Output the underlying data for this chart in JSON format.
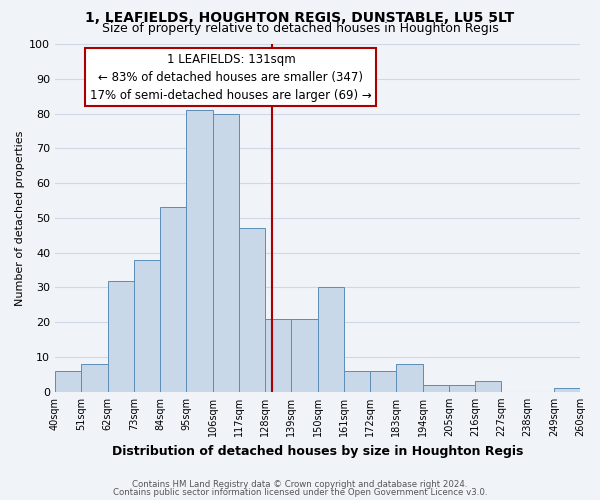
{
  "title": "1, LEAFIELDS, HOUGHTON REGIS, DUNSTABLE, LU5 5LT",
  "subtitle": "Size of property relative to detached houses in Houghton Regis",
  "xlabel": "Distribution of detached houses by size in Houghton Regis",
  "ylabel": "Number of detached properties",
  "bin_edges": [
    40,
    51,
    62,
    73,
    84,
    95,
    106,
    117,
    128,
    139,
    150,
    161,
    172,
    183,
    194,
    205,
    216,
    227,
    238,
    249,
    260
  ],
  "bar_heights": [
    6,
    8,
    32,
    38,
    53,
    81,
    80,
    47,
    21,
    21,
    30,
    6,
    6,
    8,
    2,
    2,
    3,
    0,
    0,
    1
  ],
  "bar_color": "#c8d8e8",
  "bar_edgecolor": "#5b8db8",
  "property_line_x": 131,
  "property_line_color": "#aa0000",
  "annotation_line1": "1 LEAFIELDS: 131sqm",
  "annotation_line2": "← 83% of detached houses are smaller (347)",
  "annotation_line3": "17% of semi-detached houses are larger (69) →",
  "annotation_box_edgecolor": "#aa0000",
  "annotation_box_facecolor": "#ffffff",
  "ylim": [
    0,
    100
  ],
  "yticks": [
    0,
    10,
    20,
    30,
    40,
    50,
    60,
    70,
    80,
    90,
    100
  ],
  "grid_color": "#d0d8e8",
  "background_color": "#f0f4f8",
  "footnote1": "Contains HM Land Registry data © Crown copyright and database right 2024.",
  "footnote2": "Contains public sector information licensed under the Open Government Licence v3.0.",
  "title_fontsize": 10,
  "subtitle_fontsize": 9,
  "xlabel_fontsize": 9,
  "ylabel_fontsize": 8,
  "tick_labels": [
    "40sqm",
    "51sqm",
    "62sqm",
    "73sqm",
    "84sqm",
    "95sqm",
    "106sqm",
    "117sqm",
    "128sqm",
    "139sqm",
    "150sqm",
    "161sqm",
    "172sqm",
    "183sqm",
    "194sqm",
    "205sqm",
    "216sqm",
    "227sqm",
    "238sqm",
    "249sqm",
    "260sqm"
  ]
}
